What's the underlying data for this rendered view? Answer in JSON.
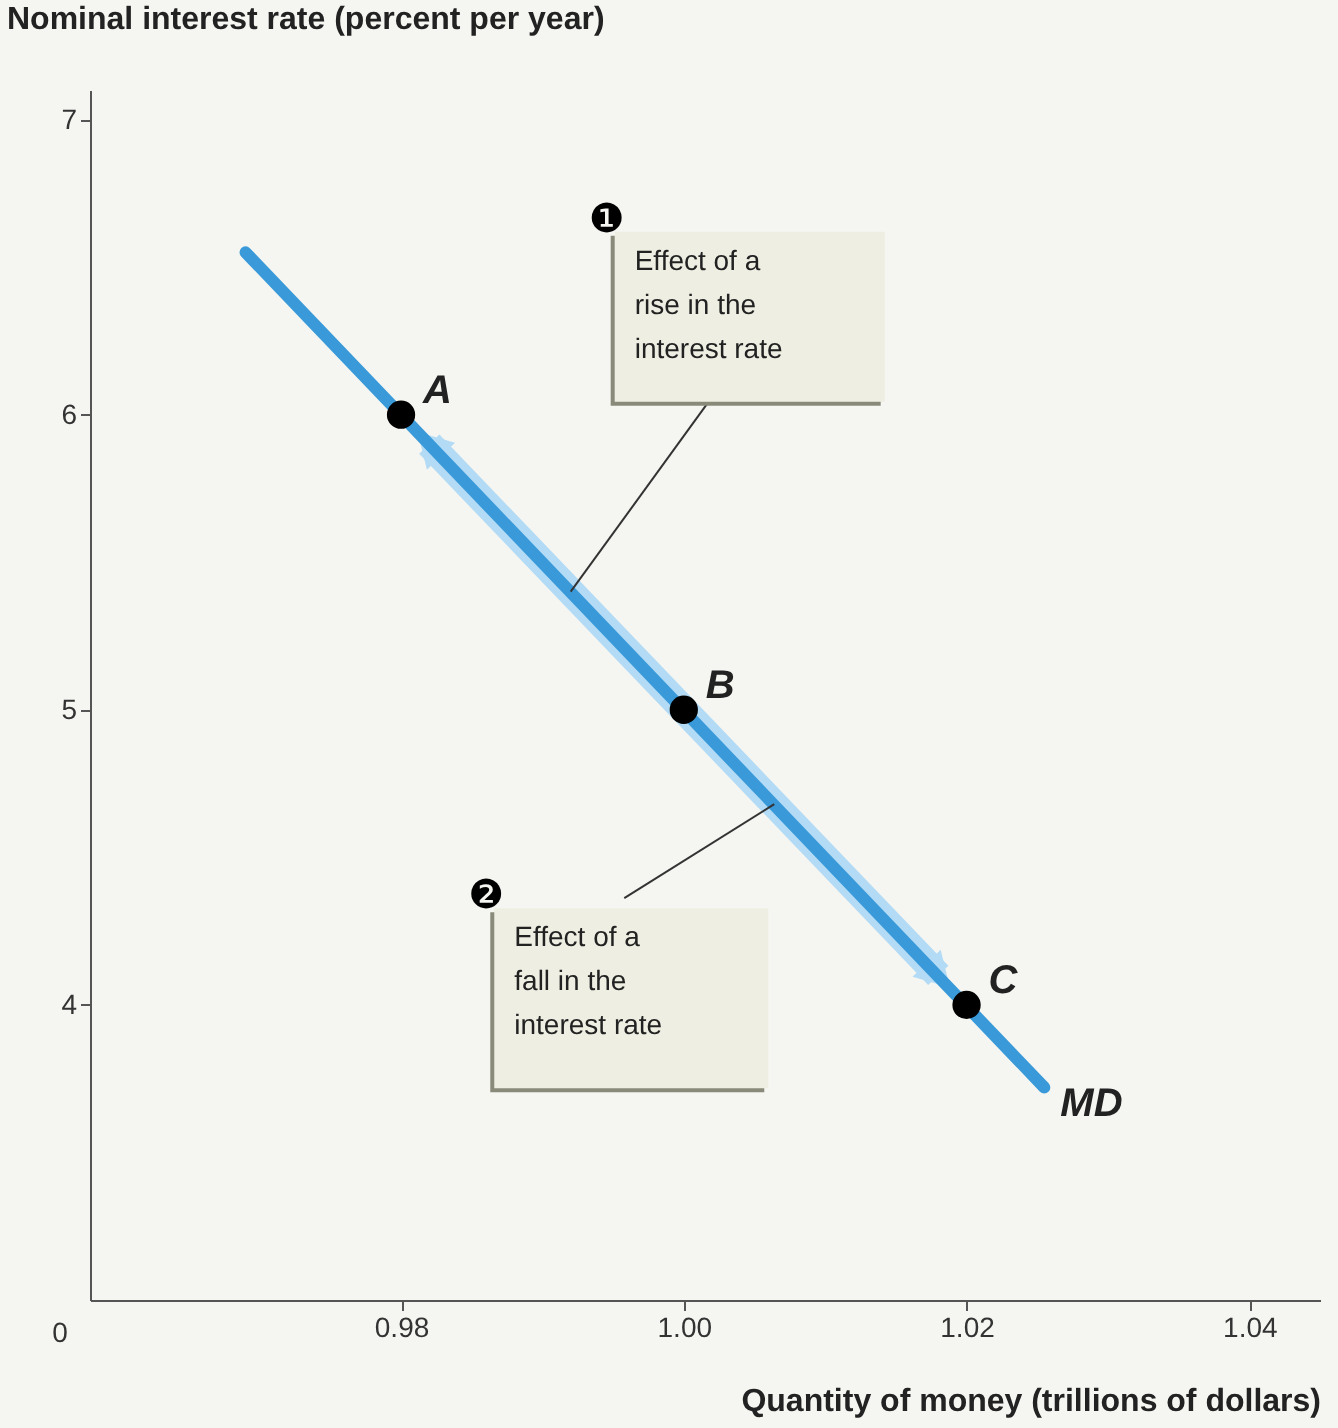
{
  "chart_data": {
    "type": "line",
    "xlabel": "Quantity of money (trillions of dollars)",
    "ylabel": "Nominal interest rate (percent per year)",
    "xlim": [
      0.958,
      1.045
    ],
    "ylim": [
      3.0,
      7.1
    ],
    "xticks": [
      0.98,
      {
        "value": 1.0,
        "label": "1.00"
      },
      1.02,
      1.04
    ],
    "yticks": [
      4,
      5,
      6,
      7
    ],
    "grid": false,
    "series": [
      {
        "name": "MD",
        "color": "#3a9ad9",
        "x": [
          0.969,
          1.0255
        ],
        "values": [
          6.55,
          3.72
        ],
        "marker": "none"
      },
      {
        "type": "scatter",
        "color": "#000000",
        "x": [
          0.98,
          1.0,
          1.02
        ],
        "values": [
          6,
          5,
          4
        ],
        "marker": "circle",
        "value_labels": [
          "A",
          "B",
          "C"
        ]
      }
    ],
    "annotations": [
      "0",
      {
        "text": "❶ Effect of a rise in the interest rate",
        "x": 0.992,
        "y": 5.4
      },
      {
        "text": "❷ Effect of a fall in the interest rate",
        "x": 1.0064,
        "y": 4.68
      }
    ]
  }
}
